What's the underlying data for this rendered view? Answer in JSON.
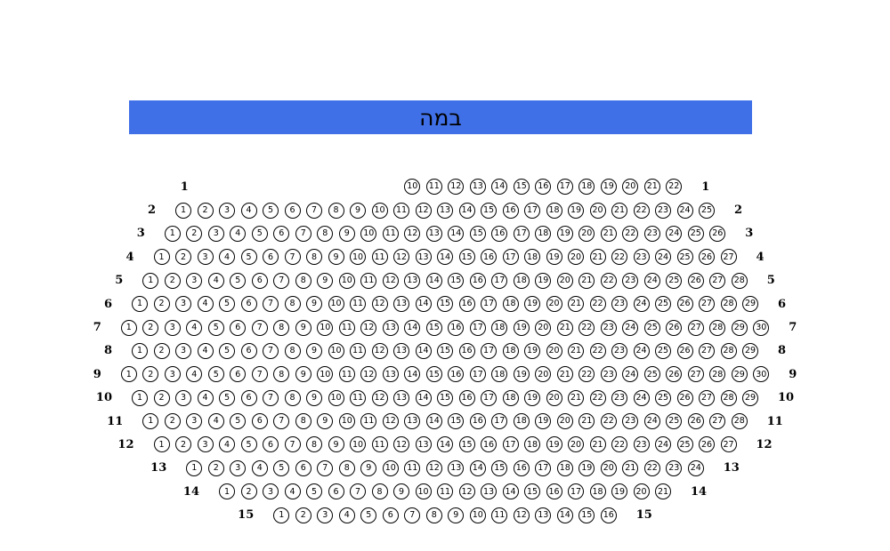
{
  "stage": {
    "label": "במה",
    "background_color": "#4070e8",
    "text_color": "#000000"
  },
  "seating": {
    "seat_border_color": "#000000",
    "rows": [
      {
        "label": "1",
        "leading_blanks": 9,
        "seats": [
          10,
          11,
          12,
          13,
          14,
          15,
          16,
          17,
          18,
          19,
          20,
          21,
          22
        ]
      },
      {
        "label": "2",
        "leading_blanks": 0,
        "seats": [
          1,
          2,
          3,
          4,
          5,
          6,
          7,
          8,
          9,
          10,
          11,
          12,
          13,
          14,
          15,
          16,
          17,
          18,
          19,
          20,
          21,
          22,
          23,
          24,
          25
        ]
      },
      {
        "label": "3",
        "leading_blanks": 0,
        "seats": [
          1,
          2,
          3,
          4,
          5,
          6,
          7,
          8,
          9,
          10,
          11,
          12,
          13,
          14,
          15,
          16,
          17,
          18,
          19,
          20,
          21,
          22,
          23,
          24,
          25,
          26
        ]
      },
      {
        "label": "4",
        "leading_blanks": 0,
        "seats": [
          1,
          2,
          3,
          4,
          5,
          6,
          7,
          8,
          9,
          10,
          11,
          12,
          13,
          14,
          15,
          16,
          17,
          18,
          19,
          20,
          21,
          22,
          23,
          24,
          25,
          26,
          27
        ]
      },
      {
        "label": "5",
        "leading_blanks": 0,
        "seats": [
          1,
          2,
          3,
          4,
          5,
          6,
          7,
          8,
          9,
          10,
          11,
          12,
          13,
          14,
          15,
          16,
          17,
          18,
          19,
          20,
          21,
          22,
          23,
          24,
          25,
          26,
          27,
          28
        ]
      },
      {
        "label": "6",
        "leading_blanks": 0,
        "seats": [
          1,
          2,
          3,
          4,
          5,
          6,
          7,
          8,
          9,
          10,
          11,
          12,
          13,
          14,
          15,
          16,
          17,
          18,
          19,
          20,
          21,
          22,
          23,
          24,
          25,
          26,
          27,
          28,
          29
        ]
      },
      {
        "label": "7",
        "leading_blanks": 0,
        "seats": [
          1,
          2,
          3,
          4,
          5,
          6,
          7,
          8,
          9,
          10,
          11,
          12,
          13,
          14,
          15,
          16,
          17,
          18,
          19,
          20,
          21,
          22,
          23,
          24,
          25,
          26,
          27,
          28,
          29,
          30
        ]
      },
      {
        "label": "8",
        "leading_blanks": 0,
        "seats": [
          1,
          2,
          3,
          4,
          5,
          6,
          7,
          8,
          9,
          10,
          11,
          12,
          13,
          14,
          15,
          16,
          17,
          18,
          19,
          20,
          21,
          22,
          23,
          24,
          25,
          26,
          27,
          28,
          29
        ]
      },
      {
        "label": "9",
        "leading_blanks": 0,
        "seats": [
          1,
          2,
          3,
          4,
          5,
          6,
          7,
          8,
          9,
          10,
          11,
          12,
          13,
          14,
          15,
          16,
          17,
          18,
          19,
          20,
          21,
          22,
          23,
          24,
          25,
          26,
          27,
          28,
          29,
          30
        ]
      },
      {
        "label": "10",
        "leading_blanks": 0,
        "seats": [
          1,
          2,
          3,
          4,
          5,
          6,
          7,
          8,
          9,
          10,
          11,
          12,
          13,
          14,
          15,
          16,
          17,
          18,
          19,
          20,
          21,
          22,
          23,
          24,
          25,
          26,
          27,
          28,
          29
        ]
      },
      {
        "label": "11",
        "leading_blanks": 0,
        "seats": [
          1,
          2,
          3,
          4,
          5,
          6,
          7,
          8,
          9,
          10,
          11,
          12,
          13,
          14,
          15,
          16,
          17,
          18,
          19,
          20,
          21,
          22,
          23,
          24,
          25,
          26,
          27,
          28
        ]
      },
      {
        "label": "12",
        "leading_blanks": 0,
        "seats": [
          1,
          2,
          3,
          4,
          5,
          6,
          7,
          8,
          9,
          10,
          11,
          12,
          13,
          14,
          15,
          16,
          17,
          18,
          19,
          20,
          21,
          22,
          23,
          24,
          25,
          26,
          27
        ]
      },
      {
        "label": "13",
        "leading_blanks": 0,
        "seats": [
          1,
          2,
          3,
          4,
          5,
          6,
          7,
          8,
          9,
          10,
          11,
          12,
          13,
          14,
          15,
          16,
          17,
          18,
          19,
          20,
          21,
          22,
          23,
          24
        ]
      },
      {
        "label": "14",
        "leading_blanks": 0,
        "seats": [
          1,
          2,
          3,
          4,
          5,
          6,
          7,
          8,
          9,
          10,
          11,
          12,
          13,
          14,
          15,
          16,
          17,
          18,
          19,
          20,
          21
        ]
      },
      {
        "label": "15",
        "leading_blanks": 0,
        "seats": [
          1,
          2,
          3,
          4,
          5,
          6,
          7,
          8,
          9,
          10,
          11,
          12,
          13,
          14,
          15,
          16
        ]
      }
    ]
  }
}
